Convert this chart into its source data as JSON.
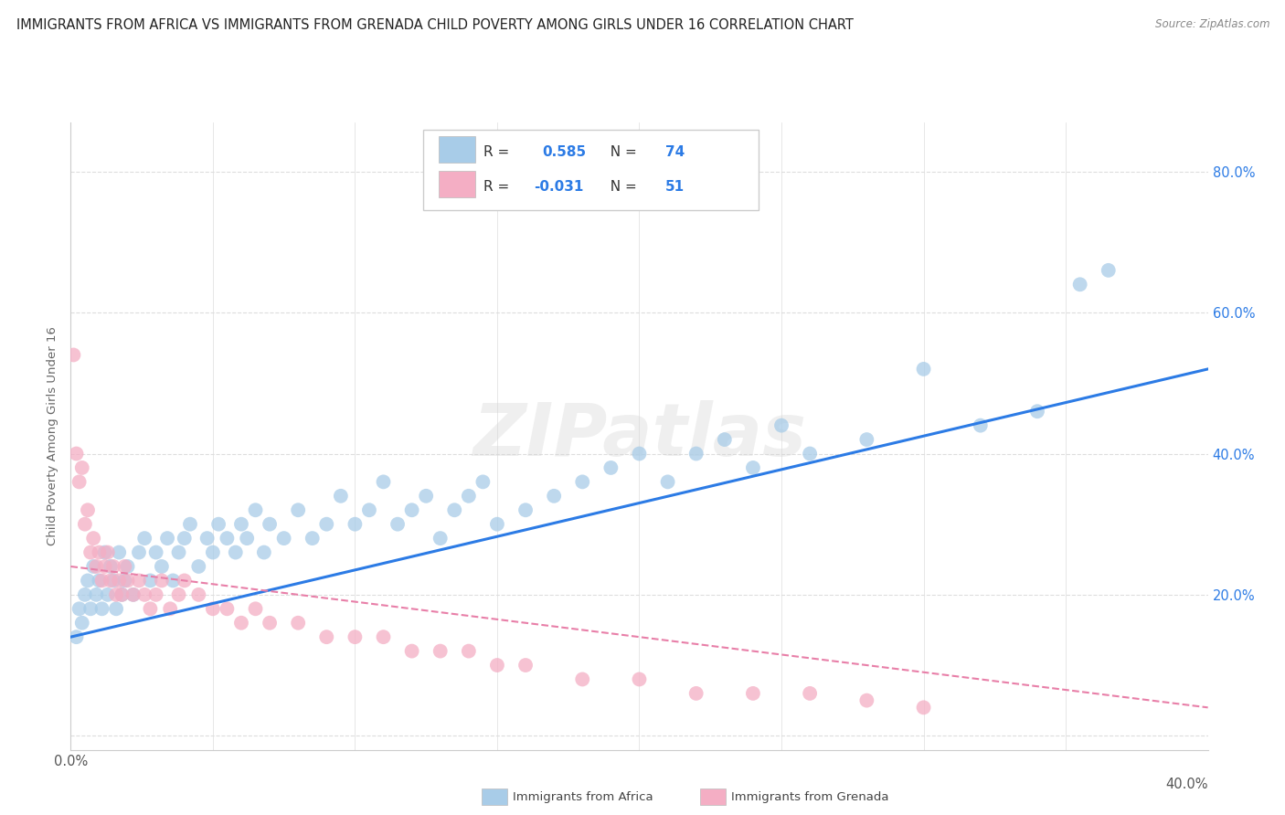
{
  "title": "IMMIGRANTS FROM AFRICA VS IMMIGRANTS FROM GRENADA CHILD POVERTY AMONG GIRLS UNDER 16 CORRELATION CHART",
  "source": "Source: ZipAtlas.com",
  "ylabel": "Child Poverty Among Girls Under 16",
  "legend_label_blue": "Immigrants from Africa",
  "legend_label_pink": "Immigrants from Grenada",
  "blue_color": "#a8cce8",
  "pink_color": "#f4aec4",
  "blue_line_color": "#2c7be5",
  "pink_line_color": "#e87fa8",
  "text_dark": "#333333",
  "text_blue": "#2c7be5",
  "background_color": "#ffffff",
  "grid_color": "#dddddd",
  "xlim": [
    0.0,
    0.4
  ],
  "ylim": [
    -0.02,
    0.87
  ],
  "blue_scatter_x": [
    0.002,
    0.003,
    0.004,
    0.005,
    0.006,
    0.007,
    0.008,
    0.009,
    0.01,
    0.011,
    0.012,
    0.013,
    0.014,
    0.015,
    0.016,
    0.017,
    0.018,
    0.019,
    0.02,
    0.022,
    0.024,
    0.026,
    0.028,
    0.03,
    0.032,
    0.034,
    0.036,
    0.038,
    0.04,
    0.042,
    0.045,
    0.048,
    0.05,
    0.052,
    0.055,
    0.058,
    0.06,
    0.062,
    0.065,
    0.068,
    0.07,
    0.075,
    0.08,
    0.085,
    0.09,
    0.095,
    0.1,
    0.105,
    0.11,
    0.115,
    0.12,
    0.125,
    0.13,
    0.135,
    0.14,
    0.145,
    0.15,
    0.16,
    0.17,
    0.18,
    0.19,
    0.2,
    0.21,
    0.22,
    0.23,
    0.24,
    0.25,
    0.26,
    0.28,
    0.3,
    0.32,
    0.34,
    0.355,
    0.365
  ],
  "blue_scatter_y": [
    0.14,
    0.18,
    0.16,
    0.2,
    0.22,
    0.18,
    0.24,
    0.2,
    0.22,
    0.18,
    0.26,
    0.2,
    0.24,
    0.22,
    0.18,
    0.26,
    0.2,
    0.22,
    0.24,
    0.2,
    0.26,
    0.28,
    0.22,
    0.26,
    0.24,
    0.28,
    0.22,
    0.26,
    0.28,
    0.3,
    0.24,
    0.28,
    0.26,
    0.3,
    0.28,
    0.26,
    0.3,
    0.28,
    0.32,
    0.26,
    0.3,
    0.28,
    0.32,
    0.28,
    0.3,
    0.34,
    0.3,
    0.32,
    0.36,
    0.3,
    0.32,
    0.34,
    0.28,
    0.32,
    0.34,
    0.36,
    0.3,
    0.32,
    0.34,
    0.36,
    0.38,
    0.4,
    0.36,
    0.4,
    0.42,
    0.38,
    0.44,
    0.4,
    0.42,
    0.52,
    0.44,
    0.46,
    0.64,
    0.66
  ],
  "pink_scatter_x": [
    0.001,
    0.002,
    0.003,
    0.004,
    0.005,
    0.006,
    0.007,
    0.008,
    0.009,
    0.01,
    0.011,
    0.012,
    0.013,
    0.014,
    0.015,
    0.016,
    0.017,
    0.018,
    0.019,
    0.02,
    0.022,
    0.024,
    0.026,
    0.028,
    0.03,
    0.032,
    0.035,
    0.038,
    0.04,
    0.045,
    0.05,
    0.055,
    0.06,
    0.065,
    0.07,
    0.08,
    0.09,
    0.1,
    0.11,
    0.12,
    0.13,
    0.14,
    0.15,
    0.16,
    0.18,
    0.2,
    0.22,
    0.24,
    0.26,
    0.28,
    0.3
  ],
  "pink_scatter_y": [
    0.54,
    0.4,
    0.36,
    0.38,
    0.3,
    0.32,
    0.26,
    0.28,
    0.24,
    0.26,
    0.22,
    0.24,
    0.26,
    0.22,
    0.24,
    0.2,
    0.22,
    0.2,
    0.24,
    0.22,
    0.2,
    0.22,
    0.2,
    0.18,
    0.2,
    0.22,
    0.18,
    0.2,
    0.22,
    0.2,
    0.18,
    0.18,
    0.16,
    0.18,
    0.16,
    0.16,
    0.14,
    0.14,
    0.14,
    0.12,
    0.12,
    0.12,
    0.1,
    0.1,
    0.08,
    0.08,
    0.06,
    0.06,
    0.06,
    0.05,
    0.04
  ],
  "blue_trend_x": [
    0.0,
    0.4
  ],
  "blue_trend_y": [
    0.14,
    0.52
  ],
  "pink_trend_x": [
    0.0,
    0.4
  ],
  "pink_trend_y": [
    0.24,
    0.04
  ],
  "watermark": "ZIPatlas",
  "title_fontsize": 10.5,
  "axis_fontsize": 9.5,
  "legend_fontsize": 11
}
